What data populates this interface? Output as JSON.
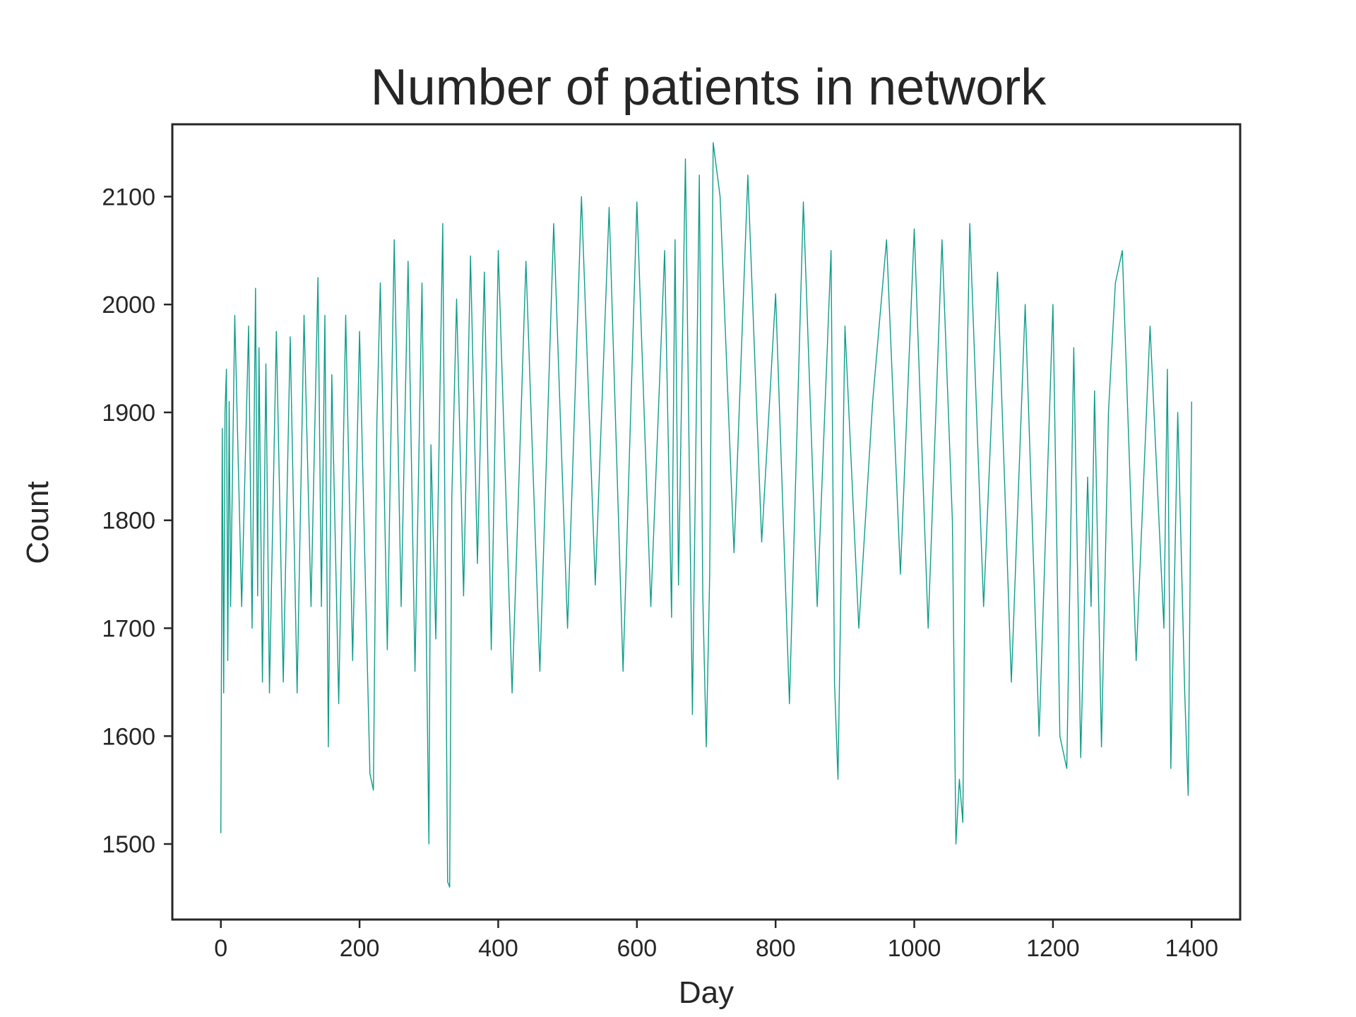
{
  "chart_data": {
    "type": "line",
    "title": "Number of patients in network",
    "xlabel": "Day",
    "ylabel": "Count",
    "xlim": [
      -70,
      1470
    ],
    "ylim": [
      1430,
      2167
    ],
    "xticks": [
      0,
      200,
      400,
      600,
      800,
      1000,
      1200,
      1400
    ],
    "yticks": [
      1500,
      1600,
      1700,
      1800,
      1900,
      2000,
      2100
    ],
    "grid": false,
    "legend": "none",
    "series": [
      {
        "color": "#0f9d8a",
        "x": [
          0,
          2,
          4,
          6,
          8,
          10,
          12,
          14,
          20,
          30,
          40,
          45,
          50,
          53,
          55,
          60,
          65,
          70,
          80,
          90,
          100,
          110,
          120,
          130,
          140,
          145,
          150,
          155,
          160,
          170,
          180,
          190,
          200,
          210,
          215,
          220,
          225,
          230,
          240,
          250,
          260,
          270,
          280,
          290,
          300,
          303,
          310,
          320,
          327,
          330,
          333,
          340,
          350,
          360,
          370,
          380,
          390,
          400,
          420,
          440,
          460,
          480,
          500,
          520,
          540,
          560,
          580,
          600,
          620,
          640,
          650,
          655,
          660,
          670,
          680,
          690,
          695,
          700,
          705,
          710,
          720,
          740,
          760,
          780,
          800,
          820,
          840,
          860,
          880,
          885,
          890,
          900,
          920,
          940,
          960,
          980,
          1000,
          1020,
          1040,
          1055,
          1060,
          1065,
          1070,
          1075,
          1080,
          1100,
          1120,
          1140,
          1160,
          1180,
          1200,
          1210,
          1220,
          1230,
          1240,
          1250,
          1255,
          1260,
          1270,
          1280,
          1290,
          1300,
          1320,
          1340,
          1360,
          1365,
          1370,
          1380,
          1390,
          1395,
          1400
        ],
        "y": [
          1510,
          1885,
          1640,
          1900,
          1940,
          1670,
          1910,
          1720,
          1990,
          1720,
          1980,
          1700,
          2015,
          1730,
          1960,
          1650,
          1945,
          1640,
          1975,
          1650,
          1970,
          1640,
          1990,
          1720,
          2025,
          1720,
          1990,
          1590,
          1935,
          1630,
          1990,
          1670,
          1975,
          1700,
          1565,
          1550,
          1890,
          2020,
          1680,
          2060,
          1720,
          2040,
          1660,
          2020,
          1500,
          1870,
          1690,
          2075,
          1465,
          1460,
          1820,
          2005,
          1730,
          2045,
          1760,
          2030,
          1680,
          2050,
          1640,
          2040,
          1660,
          2075,
          1700,
          2100,
          1740,
          2090,
          1660,
          2095,
          1720,
          2050,
          1710,
          2060,
          1740,
          2135,
          1620,
          2120,
          1730,
          1590,
          1750,
          2150,
          2100,
          1770,
          2120,
          1780,
          2010,
          1630,
          2095,
          1720,
          2050,
          1650,
          1560,
          1980,
          1700,
          1910,
          2060,
          1750,
          2070,
          1700,
          2060,
          1800,
          1500,
          1560,
          1520,
          1900,
          2075,
          1720,
          2030,
          1650,
          2000,
          1600,
          2000,
          1600,
          1570,
          1960,
          1580,
          1840,
          1720,
          1920,
          1590,
          1900,
          2020,
          2050,
          1670,
          1980,
          1700,
          1940,
          1570,
          1900,
          1640,
          1545,
          1910
        ]
      }
    ]
  }
}
